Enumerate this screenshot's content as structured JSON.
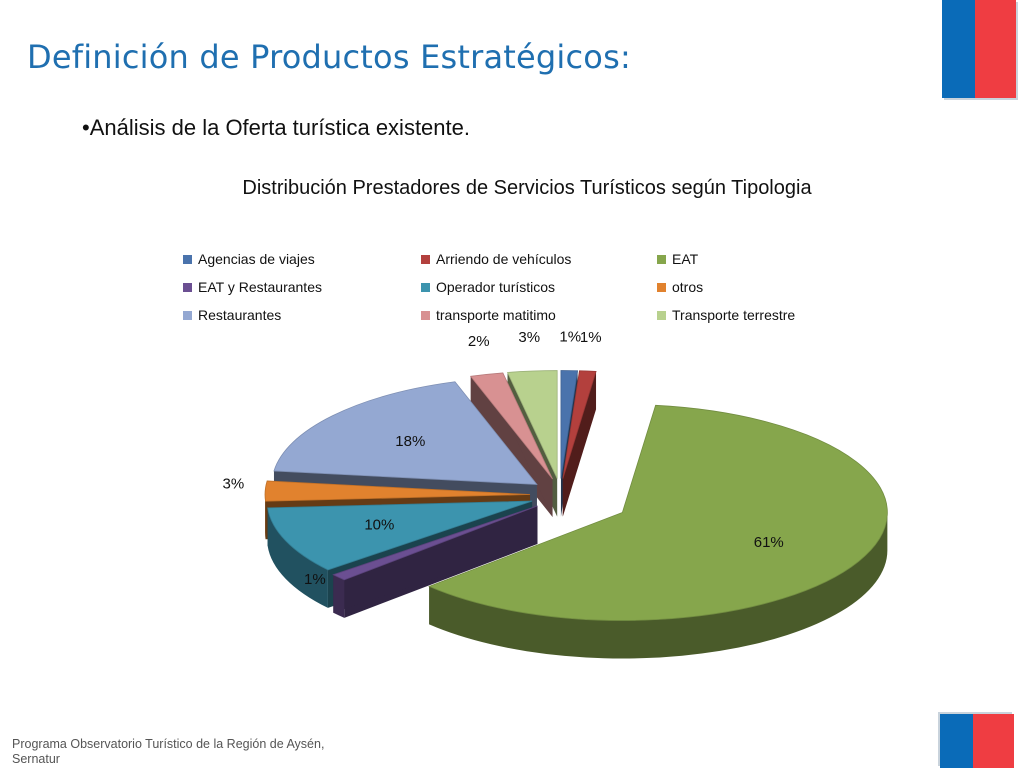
{
  "slide": {
    "title": "Definición de Productos Estratégicos:",
    "bullet": "•Análisis de la Oferta turística existente.",
    "footer": "Programa Observatorio Turístico de la Región de Aysén, Sernatur"
  },
  "brand_colors": {
    "blue": "#0a6bb8",
    "red": "#ef3d42"
  },
  "chart_data": {
    "type": "pie",
    "title": "Distribución Prestadores de Servicios Turísticos según Tipologia",
    "legend_position": "top",
    "unit": "%",
    "categories": [
      "Agencias de viajes",
      "Arriendo de vehículos",
      "EAT",
      "EAT y Restaurantes",
      "Operador turísticos",
      "otros",
      "Restaurantes",
      "transporte matitimo",
      "Transporte terrestre"
    ],
    "values": [
      1,
      1,
      61,
      1,
      10,
      3,
      18,
      2,
      3
    ],
    "labels": [
      "1%",
      "1%",
      "61%",
      "1%",
      "10%",
      "3%",
      "18%",
      "2%",
      "3%"
    ],
    "colors": [
      "#4a73ac",
      "#b3403d",
      "#86a64c",
      "#6b4f92",
      "#3c94ae",
      "#e1822e",
      "#94a8d2",
      "#d89192",
      "#b8d18e"
    ],
    "exploded": true,
    "three_d": true
  }
}
